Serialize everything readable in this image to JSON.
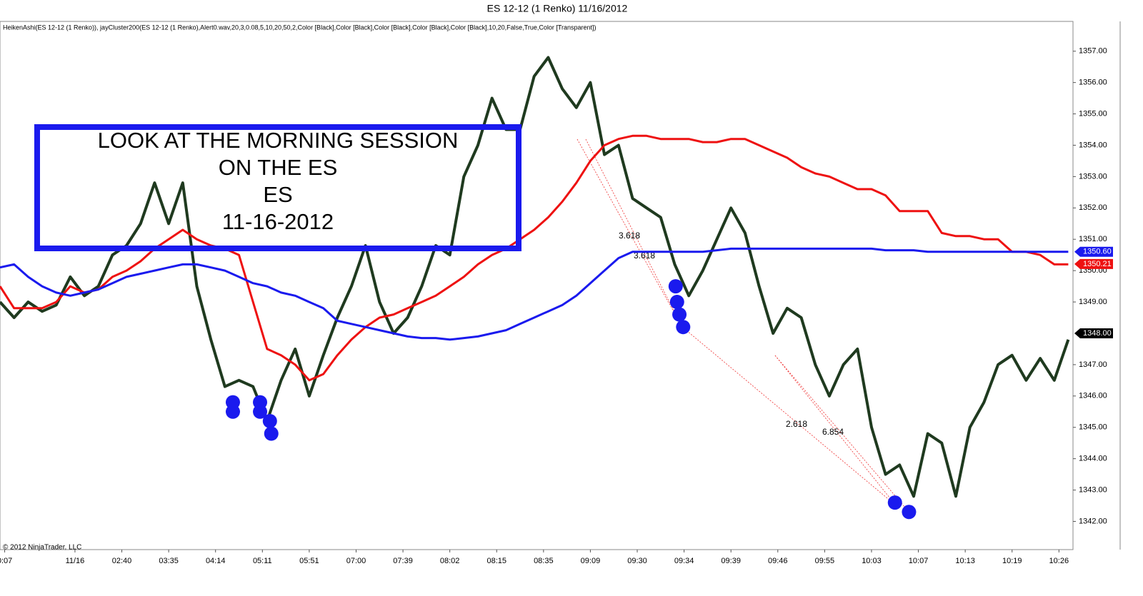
{
  "chart_data": {
    "type": "renko",
    "title": "ES 12-12 (1 Renko)  11/16/2012",
    "subtitle": "HeikenAshi(ES 12-12 (1 Renko)), jayCluster200(ES 12-12 (1 Renko),Alert0.wav,20,3,0.08,5,10,20,50,2,Color [Black],Color [Black],Color [Black],Color [Black],Color [Black],10,20,False,True,Color [Transparent])",
    "copyright": "© 2012 NinjaTrader, LLC",
    "annotation": [
      "LOOK AT THE MORNING SESSION",
      "ON THE ES",
      "ES",
      "11-16-2012"
    ],
    "fib_labels": [
      "3.618",
      "3.618",
      "2.618",
      "6.854"
    ],
    "xlim": [
      0,
      229
    ],
    "xticks": [
      {
        "value": 1,
        "label": "0:07"
      },
      {
        "value": 16,
        "label": "11/16"
      },
      {
        "value": 26,
        "label": "02:40"
      },
      {
        "value": 36,
        "label": "03:35"
      },
      {
        "value": 46,
        "label": "04:14"
      },
      {
        "value": 56,
        "label": "05:11"
      },
      {
        "value": 66,
        "label": "05:51"
      },
      {
        "value": 76,
        "label": "07:00"
      },
      {
        "value": 86,
        "label": "07:39"
      },
      {
        "value": 96,
        "label": "08:02"
      },
      {
        "value": 106,
        "label": "08:15"
      },
      {
        "value": 116,
        "label": "08:35"
      },
      {
        "value": 126,
        "label": "09:09"
      },
      {
        "value": 136,
        "label": "09:30"
      },
      {
        "value": 146,
        "label": "09:34"
      },
      {
        "value": 156,
        "label": "09:39"
      },
      {
        "value": 166,
        "label": "09:46"
      },
      {
        "value": 176,
        "label": "09:55"
      },
      {
        "value": 186,
        "label": "10:03"
      },
      {
        "value": 196,
        "label": "10:07"
      },
      {
        "value": 206,
        "label": "10:13"
      },
      {
        "value": 216,
        "label": "10:19"
      },
      {
        "value": 226,
        "label": "10:26"
      }
    ],
    "ylim": [
      1341.1,
      1357.95
    ],
    "yticks": [
      {
        "value": 1342,
        "label": "1342.00"
      },
      {
        "value": 1343,
        "label": "1343.00"
      },
      {
        "value": 1344,
        "label": "1344.00"
      },
      {
        "value": 1345,
        "label": "1345.00"
      },
      {
        "value": 1346,
        "label": "1346.00"
      },
      {
        "value": 1347,
        "label": "1347.00"
      },
      {
        "value": 1349,
        "label": "1349.00"
      },
      {
        "value": 1350,
        "label": "1350.00"
      },
      {
        "value": 1351,
        "label": "1351.00"
      },
      {
        "value": 1352,
        "label": "1352.00"
      },
      {
        "value": 1353,
        "label": "1353.00"
      },
      {
        "value": 1354,
        "label": "1354.00"
      },
      {
        "value": 1355,
        "label": "1355.00"
      },
      {
        "value": 1356,
        "label": "1356.00"
      },
      {
        "value": 1357,
        "label": "1357.00"
      }
    ],
    "x": [
      0,
      3,
      6,
      9,
      12,
      15,
      18,
      21,
      24,
      27,
      30,
      33,
      36,
      39,
      42,
      45,
      48,
      51,
      54,
      57,
      60,
      63,
      66,
      69,
      72,
      75,
      78,
      81,
      84,
      87,
      90,
      93,
      96,
      99,
      102,
      105,
      108,
      111,
      114,
      117,
      120,
      123,
      126,
      129,
      132,
      135,
      138,
      141,
      144,
      147,
      150,
      153,
      156,
      159,
      162,
      165,
      168,
      171,
      174,
      177,
      180,
      183,
      186,
      189,
      192,
      195,
      198,
      201,
      204,
      207,
      210,
      213,
      216,
      219,
      222,
      225,
      228
    ],
    "series": [
      {
        "color": "#1f3a1f",
        "values": [
          1349.0,
          1348.5,
          1349.0,
          1348.7,
          1348.9,
          1349.8,
          1349.2,
          1349.5,
          1350.5,
          1350.8,
          1351.5,
          1352.8,
          1351.5,
          1352.8,
          1349.5,
          1347.8,
          1346.3,
          1346.5,
          1346.3,
          1345.2,
          1346.5,
          1347.5,
          1346.0,
          1347.3,
          1348.5,
          1349.5,
          1350.8,
          1349.0,
          1348.0,
          1348.5,
          1349.5,
          1350.8,
          1350.5,
          1353.0,
          1354.0,
          1355.5,
          1354.5,
          1354.5,
          1356.2,
          1356.8,
          1355.8,
          1355.2,
          1356.0,
          1353.7,
          1354.0,
          1352.3,
          1352.0,
          1351.7,
          1350.2,
          1349.2,
          1350.0,
          1351.0,
          1352.0,
          1351.2,
          1349.5,
          1348.0,
          1348.8,
          1348.5,
          1347.0,
          1346.0,
          1347.0,
          1347.5,
          1345.0,
          1343.5,
          1343.8,
          1342.8,
          1344.8,
          1344.5,
          1342.8,
          1345.0,
          1345.8,
          1347.0,
          1347.3,
          1346.5,
          1347.2,
          1346.5,
          1347.8
        ]
      },
      {
        "color": "#ee1111",
        "values": [
          1349.5,
          1348.8,
          1348.8,
          1348.8,
          1349.0,
          1349.5,
          1349.3,
          1349.4,
          1349.8,
          1350.0,
          1350.3,
          1350.7,
          1351.0,
          1351.3,
          1351.0,
          1350.8,
          1350.7,
          1350.5,
          1349.0,
          1347.5,
          1347.3,
          1347.0,
          1346.5,
          1346.7,
          1347.3,
          1347.8,
          1348.2,
          1348.5,
          1348.6,
          1348.8,
          1349.0,
          1349.2,
          1349.5,
          1349.8,
          1350.2,
          1350.5,
          1350.7,
          1351.0,
          1351.3,
          1351.7,
          1352.2,
          1352.8,
          1353.5,
          1354.0,
          1354.2,
          1354.3,
          1354.3,
          1354.2,
          1354.2,
          1354.2,
          1354.1,
          1354.1,
          1354.2,
          1354.2,
          1354.0,
          1353.8,
          1353.6,
          1353.3,
          1353.1,
          1353.0,
          1352.8,
          1352.6,
          1352.6,
          1352.4,
          1351.9,
          1351.9,
          1351.9,
          1351.2,
          1351.1,
          1351.1,
          1351.0,
          1351.0,
          1350.6,
          1350.6,
          1350.5,
          1350.2,
          1350.2
        ]
      },
      {
        "color": "#1a1aee",
        "values": [
          1350.1,
          1350.2,
          1349.8,
          1349.5,
          1349.3,
          1349.2,
          1349.3,
          1349.4,
          1349.6,
          1349.8,
          1349.9,
          1350.0,
          1350.1,
          1350.2,
          1350.2,
          1350.1,
          1350.0,
          1349.8,
          1349.6,
          1349.5,
          1349.3,
          1349.2,
          1349.0,
          1348.8,
          1348.4,
          1348.3,
          1348.2,
          1348.1,
          1348.0,
          1347.9,
          1347.85,
          1347.85,
          1347.8,
          1347.85,
          1347.9,
          1348.0,
          1348.1,
          1348.3,
          1348.5,
          1348.7,
          1348.9,
          1349.2,
          1349.6,
          1350.0,
          1350.4,
          1350.6,
          1350.6,
          1350.6,
          1350.6,
          1350.6,
          1350.6,
          1350.65,
          1350.7,
          1350.7,
          1350.7,
          1350.7,
          1350.7,
          1350.7,
          1350.7,
          1350.7,
          1350.7,
          1350.7,
          1350.7,
          1350.65,
          1350.65,
          1350.65,
          1350.6,
          1350.6,
          1350.6,
          1350.6,
          1350.6,
          1350.6,
          1350.6,
          1350.6,
          1350.6,
          1350.6,
          1350.6
        ]
      }
    ],
    "dots": {
      "color": "#1a1aee",
      "x": [
        49.7,
        49.7,
        55.5,
        55.5,
        57.6,
        57.9,
        144.2,
        144.5,
        145.0,
        145.8,
        191.0,
        194.0
      ],
      "values": [
        1345.8,
        1345.5,
        1345.8,
        1345.5,
        1345.2,
        1344.8,
        1349.5,
        1349.0,
        1348.6,
        1348.2,
        1342.6,
        1342.3
      ]
    },
    "price_tags": [
      {
        "value": 1350.6,
        "label": "1350.60",
        "color": "#1a1aee"
      },
      {
        "value": 1350.21,
        "label": "1350.21",
        "color": "#ee1111"
      },
      {
        "value": 1348,
        "label": "1348.00",
        "color": "#000000"
      }
    ],
    "grid": false
  }
}
